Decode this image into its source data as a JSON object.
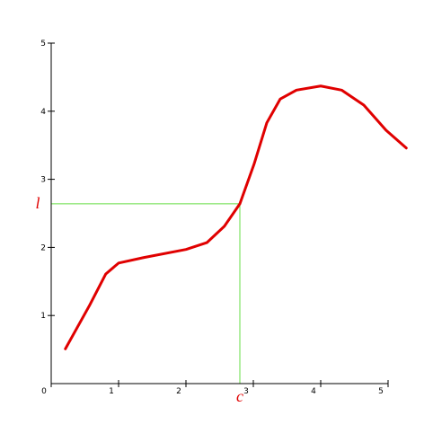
{
  "chart_data": {
    "type": "line",
    "x": [
      0.21,
      0.57,
      0.81,
      1.0,
      1.37,
      2.0,
      2.31,
      2.57,
      2.8,
      3.01,
      3.2,
      3.4,
      3.64,
      4.0,
      4.31,
      4.64,
      4.97,
      5.27
    ],
    "series": [
      {
        "color": "#e00000",
        "values": [
          0.51,
          1.15,
          1.61,
          1.77,
          1.85,
          1.97,
          2.07,
          2.31,
          2.64,
          3.22,
          3.83,
          4.18,
          4.31,
          4.37,
          4.31,
          4.09,
          3.72,
          3.46
        ]
      }
    ],
    "xlim": [
      0,
      5
    ],
    "ylim": [
      0,
      5
    ],
    "xticks": [
      0,
      1,
      2,
      3,
      4,
      5
    ],
    "yticks": [
      1,
      2,
      3,
      4,
      5
    ],
    "annotations": [
      {
        "text": "l",
        "y": 2.64,
        "color": "#66dd44"
      },
      {
        "text": "c",
        "x": 2.8,
        "color": "#66dd44"
      }
    ]
  }
}
